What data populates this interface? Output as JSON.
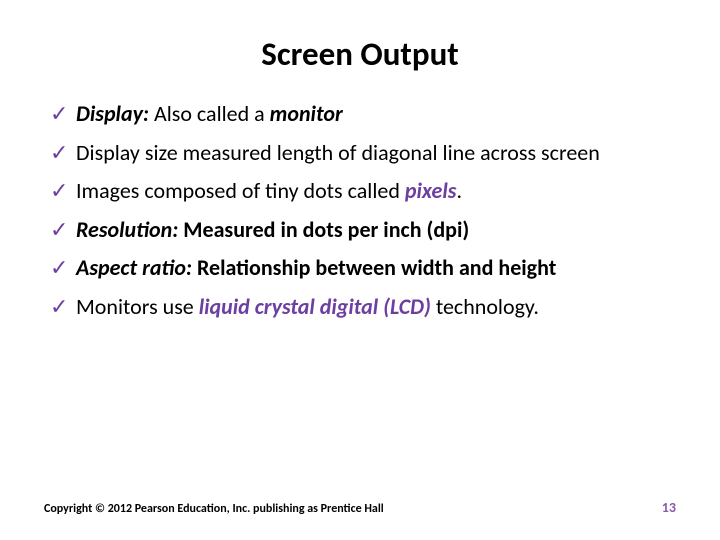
{
  "colors": {
    "background": "#ffffff",
    "text": "#000000",
    "checkmark": "#6c3fa0",
    "emphasis": "#6c3fa0",
    "pagenum": "#8a5aa8"
  },
  "title": "Screen Output",
  "bullets": [
    {
      "runs": [
        {
          "text": "Display:",
          "style": "bi"
        },
        {
          "text": " Also called a ",
          "style": ""
        },
        {
          "text": "monitor",
          "style": "bi"
        }
      ]
    },
    {
      "runs": [
        {
          "text": "Display size measured length of diagonal line across screen",
          "style": ""
        }
      ]
    },
    {
      "runs": [
        {
          "text": "Images composed of tiny dots called ",
          "style": ""
        },
        {
          "text": "pixels",
          "style": "bi-accent"
        },
        {
          "text": ".",
          "style": ""
        }
      ]
    },
    {
      "runs": [
        {
          "text": "Resolution:",
          "style": "bi"
        },
        {
          "text": " Measured in dots per inch (dpi)",
          "style": "b"
        }
      ]
    },
    {
      "runs": [
        {
          "text": "Aspect ratio:",
          "style": "bi"
        },
        {
          "text": " Relationship between width and height",
          "style": "b"
        }
      ]
    },
    {
      "runs": [
        {
          "text": "Monitors use ",
          "style": ""
        },
        {
          "text": "liquid crystal digital (LCD)",
          "style": "bi-accent"
        },
        {
          "text": " technology.",
          "style": ""
        }
      ]
    }
  ],
  "checkmark": "✓",
  "footer": {
    "copyright": "Copyright © 2012 Pearson Education, Inc. publishing as Prentice Hall",
    "pagenum": "13"
  }
}
